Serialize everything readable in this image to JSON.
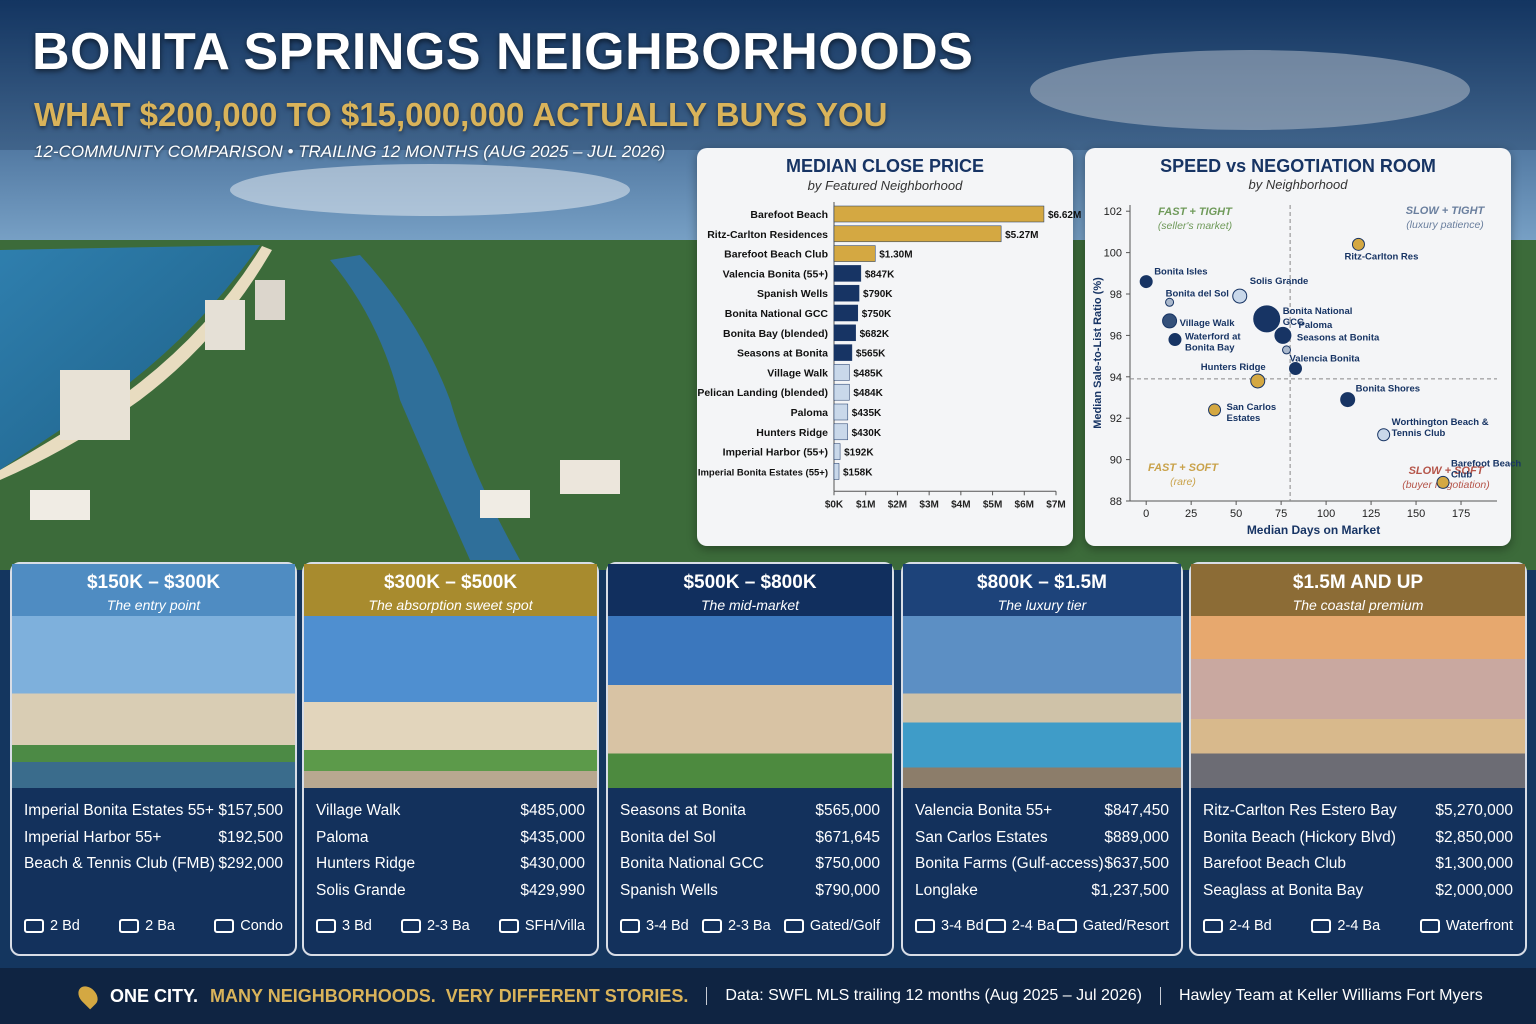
{
  "header": {
    "title": "BONITA SPRINGS NEIGHBORHOODS",
    "subtitle": "WHAT $200,000 TO $15,000,000 ACTUALLY BUYS YOU",
    "note": "12-COMMUNITY COMPARISON • TRAILING 12 MONTHS (AUG 2025 – JUL 2026)"
  },
  "chart_data": [
    {
      "type": "bar",
      "title": "MEDIAN CLOSE PRICE",
      "subtitle": "by Featured Neighborhood",
      "categories": [
        "Barefoot Beach",
        "Ritz-Carlton Residences",
        "Barefoot Beach Club",
        "Valencia Bonita (55+)",
        "Spanish Wells",
        "Bonita National GCC",
        "Bonita Bay (blended)",
        "Seasons at Bonita",
        "Village Walk",
        "Pelican Landing (blended)",
        "Paloma",
        "Hunters Ridge",
        "Imperial Harbor (55+)",
        "Imperial Bonita Estates (55+)"
      ],
      "values": [
        6620000,
        5270000,
        1300000,
        847000,
        790000,
        750000,
        682000,
        565000,
        485000,
        484000,
        435000,
        430000,
        192000,
        158000
      ],
      "value_labels": [
        "$6.62M",
        "$5.27M",
        "$1.30M",
        "$847K",
        "$790K",
        "$750K",
        "$682K",
        "$565K",
        "$485K",
        "$484K",
        "$435K",
        "$430K",
        "$192K",
        "$158K"
      ],
      "colors": [
        "#d4a842",
        "#d4a842",
        "#d4a842",
        "#173464",
        "#173464",
        "#173464",
        "#173464",
        "#173464",
        "#c9d8ea",
        "#c9d8ea",
        "#c9d8ea",
        "#c9d8ea",
        "#c9d8ea",
        "#c9d8ea"
      ],
      "xlim": [
        0,
        7000000
      ],
      "xticks": [
        {
          "value": 0,
          "label": "$0K"
        },
        {
          "value": 1000000,
          "label": "$1M"
        },
        {
          "value": 2000000,
          "label": "$2M"
        },
        {
          "value": 3000000,
          "label": "$3M"
        },
        {
          "value": 4000000,
          "label": "$4M"
        },
        {
          "value": 5000000,
          "label": "$5M"
        },
        {
          "value": 6000000,
          "label": "$6M"
        },
        {
          "value": 7000000,
          "label": "$7M"
        }
      ]
    },
    {
      "type": "scatter",
      "title": "SPEED vs NEGOTIATION ROOM",
      "subtitle": "by Neighborhood",
      "xlabel": "Median Days on Market",
      "ylabel": "Median Sale-to-List Ratio (%)",
      "labels": [
        "Bonita Isles",
        "Bonita del Sol",
        "Village Walk",
        "Waterford at Bonita Bay",
        "Solis Grande",
        "Bonita National GCC",
        "Paloma",
        "Seasons at Bonita",
        "Valencia Bonita",
        "Hunters Ridge",
        "San Carlos Estates",
        "Ritz-Carlton Res",
        "Bonita Shores",
        "Worthington Beach & Tennis Club",
        "Barefoot Beach Club"
      ],
      "x": [
        0,
        13,
        13,
        16,
        52,
        67,
        78,
        76,
        83,
        62,
        38,
        118,
        112,
        132,
        165
      ],
      "values": [
        98.6,
        97.6,
        96.7,
        95.8,
        97.9,
        96.8,
        95.3,
        96.0,
        94.4,
        93.8,
        92.4,
        100.4,
        92.9,
        91.2,
        88.9
      ],
      "sizes": [
        6,
        4,
        7,
        6,
        7,
        13,
        4,
        8,
        6,
        7,
        6,
        6,
        7,
        6,
        6
      ],
      "colors": [
        "#173464",
        "#aab8cc",
        "#34507a",
        "#173464",
        "#c9d8ea",
        "#173464",
        "#aab8cc",
        "#173464",
        "#173464",
        "#d4a842",
        "#d4a842",
        "#d4a842",
        "#173464",
        "#c9d8ea",
        "#d4a842"
      ],
      "xlim": [
        -9,
        195
      ],
      "ylim": [
        88,
        102.3
      ],
      "xticks": [
        0,
        25,
        50,
        75,
        100,
        125,
        150,
        175
      ],
      "yticks": [
        88,
        90,
        92,
        94,
        96,
        98,
        100,
        102
      ],
      "x_reference": 80,
      "y_reference": 93.9,
      "quadrants": [
        {
          "title": "FAST + TIGHT",
          "note": "(seller's market)",
          "color": "#6f9a5a"
        },
        {
          "title": "SLOW + TIGHT",
          "note": "(luxury patience)",
          "color": "#6a7f9e"
        },
        {
          "title": "FAST + SOFT",
          "note": "(rare)",
          "color": "#c9a24a"
        },
        {
          "title": "SLOW + SOFT",
          "note": "(buyer negotiation)",
          "color": "#b5554a"
        }
      ]
    }
  ],
  "tiers": [
    {
      "range": "$150K – $300K",
      "tagline": "The entry point",
      "color": "#4f8cc2",
      "listings": [
        [
          "Imperial Bonita Estates 55+",
          "$157,500"
        ],
        [
          "Imperial Harbor 55+",
          "$192,500"
        ],
        [
          "Beach & Tennis Club (FMB)",
          "$292,000"
        ]
      ],
      "features": [
        "2 Bd",
        "2 Ba",
        "Condo"
      ]
    },
    {
      "range": "$300K – $500K",
      "tagline": "The absorption sweet spot",
      "color": "#a88b2e",
      "listings": [
        [
          "Village Walk",
          "$485,000"
        ],
        [
          "Paloma",
          "$435,000"
        ],
        [
          "Hunters Ridge",
          "$430,000"
        ],
        [
          "Solis Grande",
          "$429,990"
        ]
      ],
      "features": [
        "3 Bd",
        "2-3 Ba",
        "SFH/Villa"
      ]
    },
    {
      "range": "$500K – $800K",
      "tagline": "The mid-market",
      "color": "#112f5e",
      "listings": [
        [
          "Seasons at Bonita",
          "$565,000"
        ],
        [
          "Bonita del Sol",
          "$671,645"
        ],
        [
          "Bonita National GCC",
          "$750,000"
        ],
        [
          "Spanish Wells",
          "$790,000"
        ]
      ],
      "features": [
        "3-4 Bd",
        "2-3 Ba",
        "Gated/Golf"
      ]
    },
    {
      "range": "$800K – $1.5M",
      "tagline": "The luxury tier",
      "color": "#1d437a",
      "listings": [
        [
          "Valencia Bonita 55+",
          "$847,450"
        ],
        [
          "San Carlos Estates",
          "$889,000"
        ],
        [
          "Bonita Farms (Gulf-access)",
          "$637,500"
        ],
        [
          "Longlake",
          "$1,237,500"
        ]
      ],
      "features": [
        "3-4 Bd",
        "2-4 Ba",
        "Gated/Resort"
      ]
    },
    {
      "range": "$1.5M AND UP",
      "tagline": "The coastal premium",
      "color": "#8c6c36",
      "listings": [
        [
          "Ritz-Carlton Res Estero Bay",
          "$5,270,000"
        ],
        [
          "Bonita Beach (Hickory Blvd)",
          "$2,850,000"
        ],
        [
          "Barefoot Beach Club",
          "$1,300,000"
        ],
        [
          "Seaglass at Bonita Bay",
          "$2,000,000"
        ]
      ],
      "features": [
        "2-4 Bd",
        "2-4 Ba",
        "Waterfront"
      ]
    }
  ],
  "footer": {
    "lead": "ONE CITY.",
    "tagline": "MANY NEIGHBORHOODS.  VERY DIFFERENT STORIES.",
    "source": "Data: SWFL MLS trailing 12 months (Aug 2025 – Jul 2026)",
    "credit": "Hawley Team at Keller Williams Fort Myers"
  }
}
